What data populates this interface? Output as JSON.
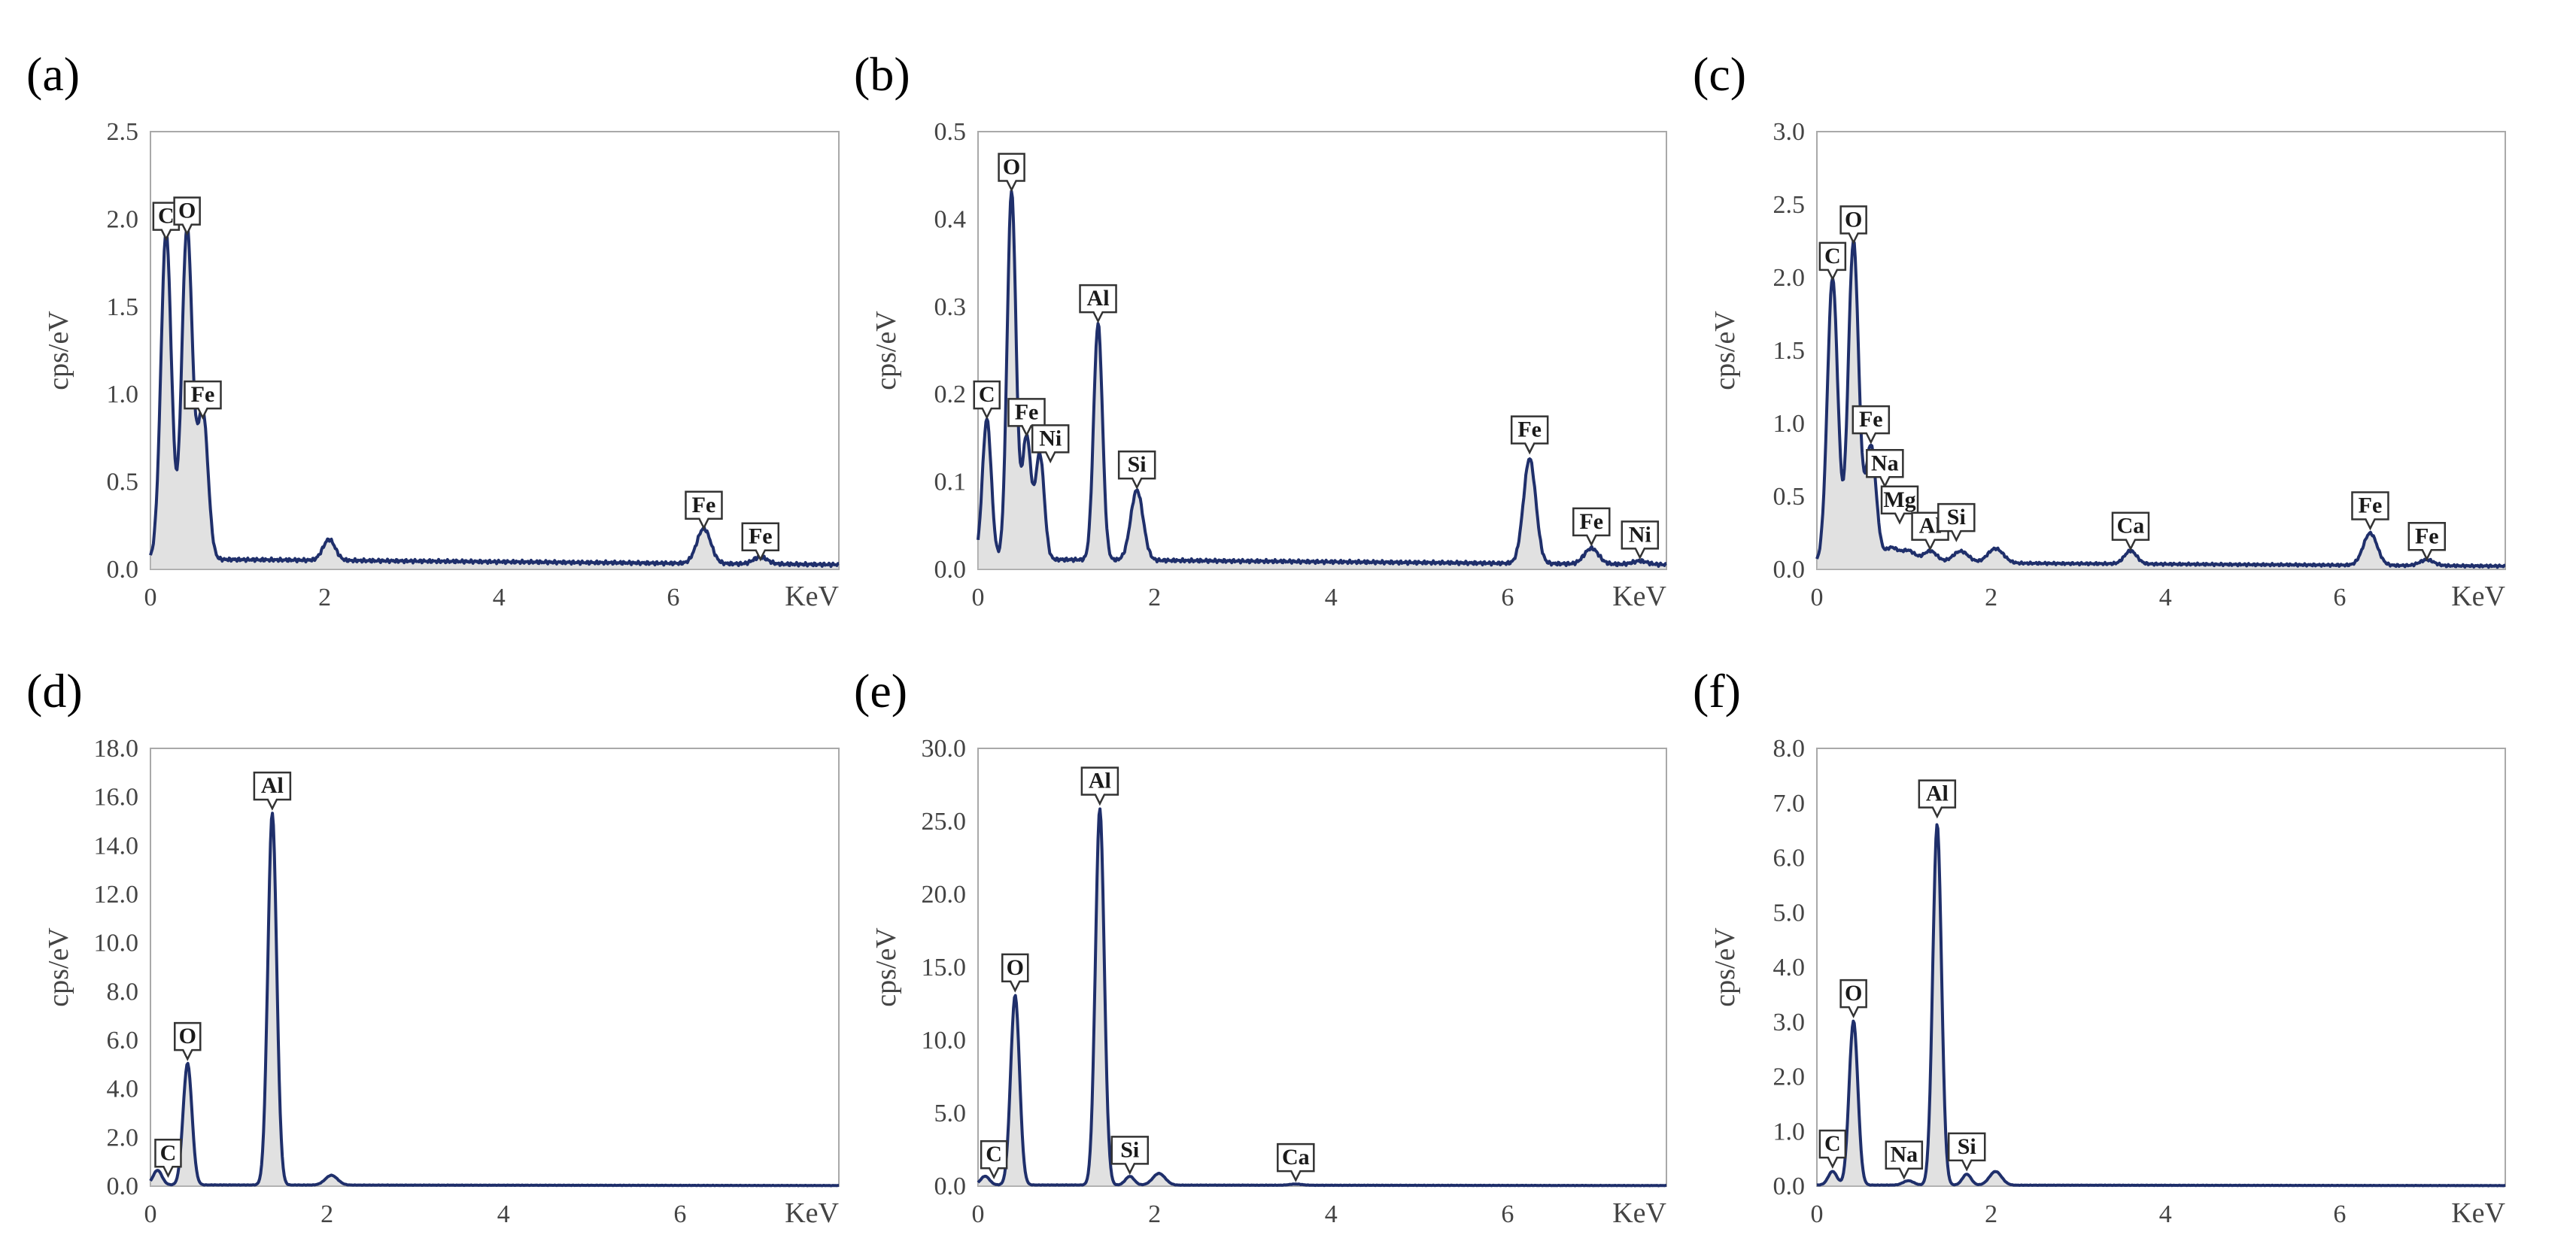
{
  "figure": {
    "accent_color": "#1f2f6b"
  },
  "chart_data": [
    {
      "type": "line",
      "panel": "(a)",
      "ylabel": "cps/eV",
      "xlabel": "KeV",
      "xlim": [
        0,
        7.9
      ],
      "ylim": [
        0,
        2.5
      ],
      "yticks": [
        "0.0",
        "0.5",
        "1.0",
        "1.5",
        "2.0",
        "2.5"
      ],
      "xticks": [
        "0",
        "2",
        "4",
        "6"
      ],
      "baseline": 0.06,
      "peaks": [
        {
          "x": 0.18,
          "y": 1.87,
          "w": 0.06
        },
        {
          "x": 0.42,
          "y": 1.9,
          "w": 0.06
        },
        {
          "x": 0.6,
          "y": 0.85,
          "w": 0.06
        },
        {
          "x": 2.05,
          "y": 0.12,
          "w": 0.07
        },
        {
          "x": 6.35,
          "y": 0.2,
          "w": 0.08
        },
        {
          "x": 7.0,
          "y": 0.04,
          "w": 0.08
        }
      ],
      "labels": [
        {
          "text": "C",
          "x": 0.18,
          "y": 1.87
        },
        {
          "text": "O",
          "x": 0.42,
          "y": 1.9
        },
        {
          "text": "Fe",
          "x": 0.6,
          "y": 0.85
        },
        {
          "text": "Fe",
          "x": 6.35,
          "y": 0.22
        },
        {
          "text": "Fe",
          "x": 7.0,
          "y": 0.04
        }
      ]
    },
    {
      "type": "line",
      "panel": "(b)",
      "ylabel": "cps/eV",
      "xlabel": "KeV",
      "xlim": [
        0,
        7.8
      ],
      "ylim": [
        0,
        0.5
      ],
      "yticks": [
        "0.0",
        "0.1",
        "0.2",
        "0.3",
        "0.4",
        "0.5"
      ],
      "xticks": [
        "0",
        "2",
        "4",
        "6"
      ],
      "baseline": 0.012,
      "peaks": [
        {
          "x": 0.1,
          "y": 0.16,
          "w": 0.05
        },
        {
          "x": 0.38,
          "y": 0.42,
          "w": 0.05
        },
        {
          "x": 0.55,
          "y": 0.14,
          "w": 0.05
        },
        {
          "x": 0.7,
          "y": 0.12,
          "w": 0.05
        },
        {
          "x": 1.36,
          "y": 0.27,
          "w": 0.05
        },
        {
          "x": 1.8,
          "y": 0.08,
          "w": 0.07
        },
        {
          "x": 6.25,
          "y": 0.12,
          "w": 0.07
        },
        {
          "x": 6.95,
          "y": 0.018,
          "w": 0.08
        },
        {
          "x": 7.5,
          "y": 0.004,
          "w": 0.08
        }
      ],
      "labels": [
        {
          "text": "O",
          "x": 0.38,
          "y": 0.43
        },
        {
          "text": "C",
          "x": 0.1,
          "y": 0.17
        },
        {
          "text": "Fe",
          "x": 0.55,
          "y": 0.15
        },
        {
          "text": "Ni",
          "x": 0.82,
          "y": 0.12
        },
        {
          "text": "Al",
          "x": 1.36,
          "y": 0.28
        },
        {
          "text": "Si",
          "x": 1.8,
          "y": 0.09
        },
        {
          "text": "Fe",
          "x": 6.25,
          "y": 0.13
        },
        {
          "text": "Fe",
          "x": 6.95,
          "y": 0.025
        },
        {
          "text": "Ni",
          "x": 7.5,
          "y": 0.01
        }
      ]
    },
    {
      "type": "line",
      "panel": "(c)",
      "ylabel": "cps/eV",
      "xlabel": "KeV",
      "xlim": [
        0,
        7.9
      ],
      "ylim": [
        0,
        3.0
      ],
      "yticks": [
        "0.0",
        "0.5",
        "1.0",
        "1.5",
        "2.0",
        "2.5",
        "3.0"
      ],
      "xticks": [
        "0",
        "2",
        "4",
        "6"
      ],
      "baseline": 0.05,
      "peaks": [
        {
          "x": 0.18,
          "y": 1.95,
          "w": 0.06
        },
        {
          "x": 0.42,
          "y": 2.2,
          "w": 0.06
        },
        {
          "x": 0.62,
          "y": 0.8,
          "w": 0.06
        },
        {
          "x": 0.85,
          "y": 0.1,
          "w": 0.08
        },
        {
          "x": 1.05,
          "y": 0.08,
          "w": 0.08
        },
        {
          "x": 1.3,
          "y": 0.08,
          "w": 0.08
        },
        {
          "x": 1.65,
          "y": 0.08,
          "w": 0.09
        },
        {
          "x": 2.05,
          "y": 0.1,
          "w": 0.09
        },
        {
          "x": 3.6,
          "y": 0.09,
          "w": 0.07
        },
        {
          "x": 6.35,
          "y": 0.22,
          "w": 0.08
        },
        {
          "x": 7.0,
          "y": 0.04,
          "w": 0.08
        }
      ],
      "labels": [
        {
          "text": "C",
          "x": 0.18,
          "y": 1.97
        },
        {
          "text": "O",
          "x": 0.42,
          "y": 2.22
        },
        {
          "text": "Fe",
          "x": 0.62,
          "y": 0.85
        },
        {
          "text": "Na",
          "x": 0.78,
          "y": 0.55
        },
        {
          "text": "Mg",
          "x": 0.95,
          "y": 0.3
        },
        {
          "text": "Al",
          "x": 1.3,
          "y": 0.12
        },
        {
          "text": "Si",
          "x": 1.6,
          "y": 0.18
        },
        {
          "text": "Ca",
          "x": 3.6,
          "y": 0.12
        },
        {
          "text": "Fe",
          "x": 6.35,
          "y": 0.26
        },
        {
          "text": "Fe",
          "x": 7.0,
          "y": 0.05
        }
      ]
    },
    {
      "type": "line",
      "panel": "(d)",
      "ylabel": "cps/eV",
      "xlabel": "KeV",
      "xlim": [
        0,
        7.8
      ],
      "ylim": [
        0,
        18.0
      ],
      "yticks": [
        "0.0",
        "2.0",
        "4.0",
        "6.0",
        "8.0",
        "10.0",
        "12.0",
        "14.0",
        "16.0",
        "18.0"
      ],
      "xticks": [
        "0",
        "2",
        "4",
        "6"
      ],
      "baseline": 0.05,
      "peaks": [
        {
          "x": 0.08,
          "y": 0.6,
          "w": 0.05
        },
        {
          "x": 0.42,
          "y": 5.0,
          "w": 0.05
        },
        {
          "x": 1.38,
          "y": 15.3,
          "w": 0.05
        },
        {
          "x": 2.05,
          "y": 0.4,
          "w": 0.07
        }
      ],
      "labels": [
        {
          "text": "C",
          "x": 0.2,
          "y": 0.3
        },
        {
          "text": "O",
          "x": 0.42,
          "y": 5.1
        },
        {
          "text": "Al",
          "x": 1.38,
          "y": 15.4
        }
      ]
    },
    {
      "type": "line",
      "panel": "(e)",
      "ylabel": "cps/eV",
      "xlabel": "KeV",
      "xlim": [
        0,
        7.8
      ],
      "ylim": [
        0,
        30.0
      ],
      "yticks": [
        "0.0",
        "5.0",
        "10.0",
        "15.0",
        "20.0",
        "25.0",
        "30.0"
      ],
      "xticks": [
        "0",
        "2",
        "4",
        "6"
      ],
      "baseline": 0.08,
      "peaks": [
        {
          "x": 0.08,
          "y": 0.6,
          "w": 0.05
        },
        {
          "x": 0.42,
          "y": 13.0,
          "w": 0.05
        },
        {
          "x": 1.38,
          "y": 25.8,
          "w": 0.05
        },
        {
          "x": 1.72,
          "y": 0.6,
          "w": 0.05
        },
        {
          "x": 2.05,
          "y": 0.8,
          "w": 0.07
        },
        {
          "x": 3.6,
          "y": 0.08,
          "w": 0.07
        }
      ],
      "labels": [
        {
          "text": "C",
          "x": 0.18,
          "y": 0.4
        },
        {
          "text": "O",
          "x": 0.42,
          "y": 13.2
        },
        {
          "text": "Al",
          "x": 1.38,
          "y": 26.0
        },
        {
          "text": "Si",
          "x": 1.72,
          "y": 0.7
        },
        {
          "text": "Ca",
          "x": 3.6,
          "y": 0.2
        }
      ]
    },
    {
      "type": "line",
      "panel": "(f)",
      "ylabel": "cps/eV",
      "xlabel": "KeV",
      "xlim": [
        0,
        7.9
      ],
      "ylim": [
        0,
        8.0
      ],
      "yticks": [
        "0.0",
        "1.0",
        "2.0",
        "3.0",
        "4.0",
        "5.0",
        "6.0",
        "7.0",
        "8.0"
      ],
      "xticks": [
        "0",
        "2",
        "4",
        "6"
      ],
      "baseline": 0.02,
      "peaks": [
        {
          "x": 0.18,
          "y": 0.25,
          "w": 0.05
        },
        {
          "x": 0.42,
          "y": 3.0,
          "w": 0.05
        },
        {
          "x": 1.05,
          "y": 0.08,
          "w": 0.06
        },
        {
          "x": 1.38,
          "y": 6.6,
          "w": 0.05
        },
        {
          "x": 1.72,
          "y": 0.2,
          "w": 0.05
        },
        {
          "x": 2.05,
          "y": 0.25,
          "w": 0.07
        }
      ],
      "labels": [
        {
          "text": "C",
          "x": 0.18,
          "y": 0.3
        },
        {
          "text": "O",
          "x": 0.42,
          "y": 3.05
        },
        {
          "text": "Na",
          "x": 1.0,
          "y": 0.1
        },
        {
          "text": "Al",
          "x": 1.38,
          "y": 6.7
        },
        {
          "text": "Si",
          "x": 1.72,
          "y": 0.25
        }
      ]
    }
  ]
}
